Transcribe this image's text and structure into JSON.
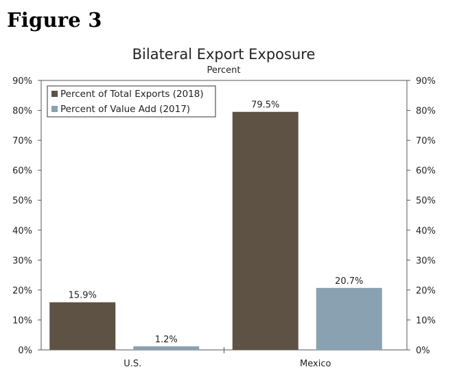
{
  "figure_label": "Figure 3",
  "chart_data": {
    "type": "bar",
    "title": "Bilateral Export Exposure",
    "subtitle": "Percent",
    "categories": [
      "U.S.",
      "Mexico"
    ],
    "series": [
      {
        "name": "Percent of Total Exports (2018)",
        "values": [
          15.9,
          79.5
        ],
        "labels": [
          "15.9%",
          "79.5%"
        ],
        "color": "#5e5244"
      },
      {
        "name": "Percent of Value Add (2017)",
        "values": [
          1.2,
          20.7
        ],
        "labels": [
          "1.2%",
          "20.7%"
        ],
        "color": "#8aa1b1"
      }
    ],
    "ylim": [
      0,
      90
    ],
    "yticks": [
      0,
      10,
      20,
      30,
      40,
      50,
      60,
      70,
      80,
      90
    ],
    "ytick_labels": [
      "0%",
      "10%",
      "20%",
      "30%",
      "40%",
      "50%",
      "60%",
      "70%",
      "80%",
      "90%"
    ],
    "y_axis_both_sides": true,
    "grid": false,
    "legend_position": "top-left"
  }
}
